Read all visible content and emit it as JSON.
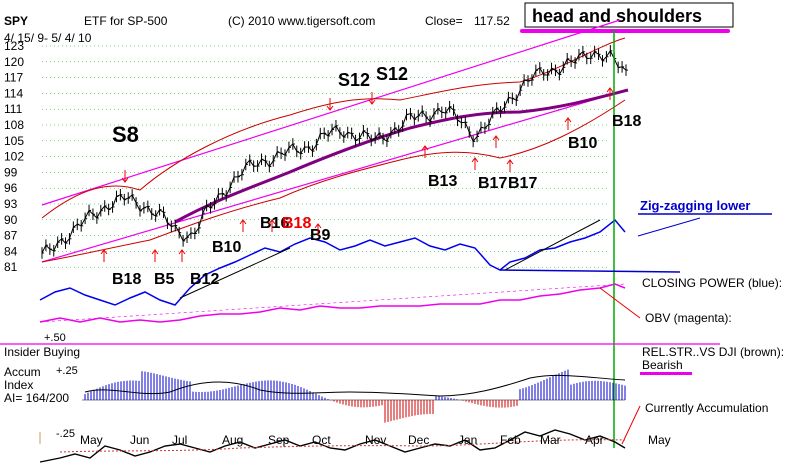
{
  "chart_data": {
    "type": "line",
    "ticker": "SPY",
    "title": "ETF for SP-500",
    "date_range": "4/ 15/ 9- 5/ 4/ 10",
    "copyright": "(C) 2010 www.tigersoft.com",
    "close_label": "Close=",
    "close_value": "117.52",
    "headline": "head and shoulders",
    "y_ticks": [
      "123",
      "120",
      "117",
      "114",
      "111",
      "108",
      "105",
      "102",
      "99",
      "96",
      "93",
      "90",
      "87",
      "84",
      "81"
    ],
    "x_ticks": [
      "May",
      "Jun",
      "Jul",
      "Aug",
      "Sep",
      "Oct",
      "Nov",
      "Dec",
      "Jan",
      "Feb",
      "Mar",
      "Apr",
      "May"
    ],
    "price_series": [
      {
        "i": 0,
        "v": 83
      },
      {
        "i": 1,
        "v": 86
      },
      {
        "i": 2,
        "v": 88
      },
      {
        "i": 3,
        "v": 91
      },
      {
        "i": 4,
        "v": 93
      },
      {
        "i": 5,
        "v": 94
      },
      {
        "i": 6,
        "v": 93
      },
      {
        "i": 7,
        "v": 91
      },
      {
        "i": 8,
        "v": 88
      },
      {
        "i": 9,
        "v": 87
      },
      {
        "i": 10,
        "v": 92
      },
      {
        "i": 11,
        "v": 96
      },
      {
        "i": 12,
        "v": 99
      },
      {
        "i": 13,
        "v": 101
      },
      {
        "i": 14,
        "v": 102
      },
      {
        "i": 15,
        "v": 103
      },
      {
        "i": 16,
        "v": 104
      },
      {
        "i": 17,
        "v": 106
      },
      {
        "i": 18,
        "v": 107
      },
      {
        "i": 19,
        "v": 106
      },
      {
        "i": 20,
        "v": 105
      },
      {
        "i": 21,
        "v": 107
      },
      {
        "i": 22,
        "v": 109
      },
      {
        "i": 23,
        "v": 110
      },
      {
        "i": 24,
        "v": 111
      },
      {
        "i": 25,
        "v": 109
      },
      {
        "i": 26,
        "v": 106
      },
      {
        "i": 27,
        "v": 109
      },
      {
        "i": 28,
        "v": 113
      },
      {
        "i": 29,
        "v": 116
      },
      {
        "i": 30,
        "v": 118
      },
      {
        "i": 31,
        "v": 119
      },
      {
        "i": 32,
        "v": 120
      },
      {
        "i": 33,
        "v": 122
      },
      {
        "i": 34,
        "v": 121
      },
      {
        "i": 35,
        "v": 117.5
      }
    ],
    "signals": [
      {
        "label": "S8",
        "color": "#000000",
        "size": "large"
      },
      {
        "label": "S12",
        "color": "#000000",
        "size": "large"
      },
      {
        "label": "S12",
        "color": "#000000",
        "size": "large"
      },
      {
        "label": "B18",
        "color": "#000000",
        "size": "large"
      },
      {
        "label": "B10",
        "color": "#000000",
        "size": "large"
      },
      {
        "label": "B13",
        "color": "#000000",
        "size": "large"
      },
      {
        "label": "B17",
        "color": "#000000",
        "size": "large"
      },
      {
        "label": "B17",
        "color": "#000000",
        "size": "large"
      },
      {
        "label": "B10",
        "color": "#000000",
        "size": "large"
      },
      {
        "label": "B16",
        "color": "#000000",
        "size": "large"
      },
      {
        "label": "B18",
        "color": "#ee0000",
        "size": "large"
      },
      {
        "label": "B9",
        "color": "#000000",
        "size": "large"
      },
      {
        "label": "B18",
        "color": "#000000",
        "size": "large"
      },
      {
        "label": "B5",
        "color": "#000000",
        "size": "large"
      },
      {
        "label": "B12",
        "color": "#000000",
        "size": "large"
      }
    ],
    "annotations": {
      "zigzag": "Zig-zagging lower",
      "closing_power": "CLOSING POWER (blue):",
      "obv": "OBV (magenta):",
      "rel_str": "REL.STR..VS DJI (brown):",
      "bearish": "Bearish",
      "currently_accumulation": "Currently Accumulation"
    },
    "insider_label": "Insider Buying",
    "insider_ticks": [
      "+.50"
    ],
    "accum_label": "Accum",
    "index_label": "Index",
    "ai_label": "AI= 164/200",
    "accum_ticks": [
      "+.25",
      "-.25"
    ],
    "colors": {
      "price": "#000000",
      "closing_power": "#0000ee",
      "obv": "#ee00ee",
      "bands": "#ee00ee",
      "bollinger": "#cc0000",
      "ma": "#800080",
      "accum_pos": "#0000cc",
      "accum_neg": "#cc0000",
      "signal_marker": "#ee0000",
      "gridline": "#00aa00",
      "insider_line": "#ee00ee",
      "headline_underline": "#ee00ee",
      "vertical_marker": "#00aa00",
      "zigzag_text": "#0000cc"
    }
  }
}
